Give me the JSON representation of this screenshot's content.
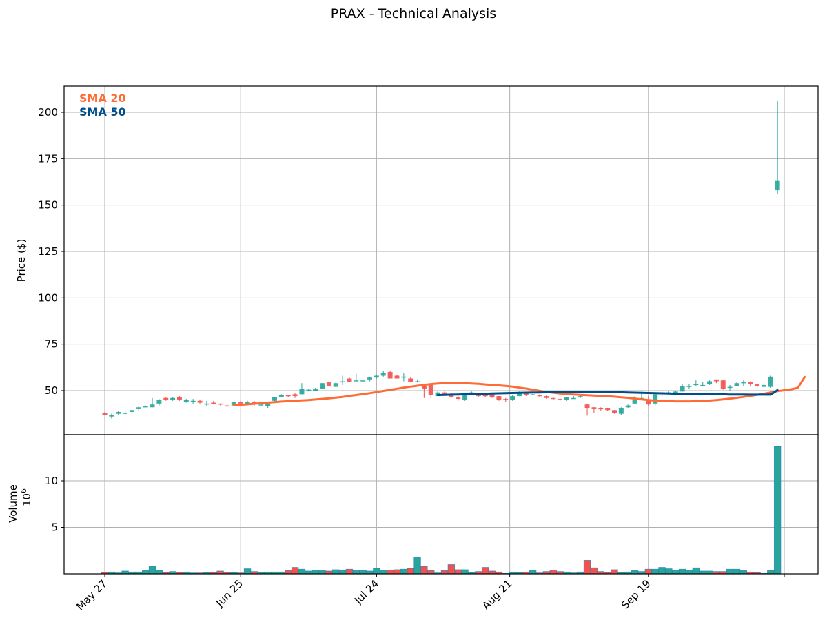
{
  "title": "PRAX - Technical Analysis",
  "colors": {
    "up": "#26a69a",
    "down": "#ef5350",
    "sma20": "#ff6b35",
    "sma50": "#004e89",
    "grid": "#b0b0b0",
    "volume_edge": "#1f77b4"
  },
  "legend": [
    {
      "label": "SMA 20",
      "color": "#ff6b35"
    },
    {
      "label": "SMA 50",
      "color": "#004e89"
    }
  ],
  "axes": {
    "price_ylabel": "Price ($)",
    "volume_ylabel": "Volume",
    "volume_scale_label": "10^6",
    "price_ticks": [
      50,
      75,
      100,
      125,
      150,
      175,
      200
    ],
    "volume_ticks": [
      5,
      10
    ],
    "x_ticks": [
      "May 27",
      "Jun 25",
      "Jul 24",
      "Aug 21",
      "Sep 19",
      ""
    ]
  },
  "chart_data": [
    {
      "type": "candlestick",
      "title": "PRAX - Technical Analysis",
      "xlabel": "",
      "ylabel": "Price ($)",
      "ylim": [
        22,
        214
      ],
      "grid": true,
      "legend_position": "upper left",
      "x_tick_labels": [
        "May 27",
        "Jun 25",
        "Jul 24",
        "Aug 21",
        "Sep 19"
      ],
      "candles": [
        [
          38,
          37,
          38.5,
          36.5
        ],
        [
          36,
          37,
          37.5,
          35
        ],
        [
          37.5,
          38.5,
          39,
          37
        ],
        [
          38,
          38,
          39,
          36.5
        ],
        [
          38.5,
          39.5,
          40,
          37.5
        ],
        [
          40,
          41,
          41.5,
          39
        ],
        [
          41,
          41.5,
          42,
          41
        ],
        [
          41,
          42.5,
          46,
          41
        ],
        [
          43,
          45,
          45.5,
          42
        ],
        [
          46,
          45,
          46.5,
          44.5
        ],
        [
          45,
          46,
          46.5,
          44.5
        ],
        [
          46.5,
          45,
          47,
          44.5
        ],
        [
          44,
          45,
          45.5,
          43.5
        ],
        [
          44.5,
          44.5,
          45.5,
          43
        ],
        [
          44.5,
          43.5,
          45,
          43
        ],
        [
          43,
          43,
          44.5,
          41.5
        ],
        [
          43.5,
          43,
          44.5,
          42.5
        ],
        [
          43,
          42.5,
          43,
          42
        ],
        [
          42,
          41.5,
          42.5,
          41
        ],
        [
          42,
          44,
          44,
          41.5
        ],
        [
          44,
          43,
          44.5,
          42
        ],
        [
          43,
          44,
          44.5,
          42
        ],
        [
          44,
          43,
          44.5,
          42
        ],
        [
          42,
          42.5,
          43,
          41.5
        ],
        [
          41.5,
          43.5,
          44,
          40.5
        ],
        [
          44.5,
          46.5,
          46.5,
          44
        ],
        [
          46.5,
          47.5,
          48,
          47
        ],
        [
          47.5,
          47,
          47.5,
          46.5
        ],
        [
          48,
          47,
          48.5,
          46
        ],
        [
          48,
          51,
          54,
          48
        ],
        [
          50,
          50.5,
          51,
          49.5
        ],
        [
          50,
          51,
          51.5,
          50
        ],
        [
          51,
          54,
          54,
          51
        ],
        [
          54.5,
          52.5,
          54.5,
          52.5
        ],
        [
          52,
          54,
          54.5,
          52
        ],
        [
          55,
          55,
          58,
          53
        ],
        [
          56.5,
          54.5,
          57,
          54.5
        ],
        [
          55,
          55.5,
          59,
          55
        ],
        [
          55,
          55.5,
          56,
          54.5
        ],
        [
          56,
          57,
          57.5,
          55
        ],
        [
          57,
          58,
          58.5,
          56.5
        ],
        [
          58,
          59.5,
          60.5,
          57.5
        ],
        [
          60,
          56.5,
          60.5,
          56.5
        ],
        [
          58,
          56.5,
          58.5,
          56.5
        ],
        [
          57.5,
          57.5,
          59.5,
          55
        ],
        [
          56.5,
          54.5,
          57,
          54.5
        ],
        [
          55,
          55,
          56,
          54.5
        ],
        [
          52.5,
          51,
          53,
          46
        ],
        [
          53,
          47.5,
          53,
          46
        ],
        [
          47,
          49,
          49.5,
          47
        ],
        [
          49,
          48,
          49.5,
          47.5
        ],
        [
          48,
          46.5,
          48.5,
          46
        ],
        [
          46.5,
          45.5,
          47,
          44.5
        ],
        [
          45,
          48,
          48,
          44.5
        ],
        [
          48.5,
          49,
          49.5,
          48
        ],
        [
          48,
          47,
          48.5,
          46.5
        ],
        [
          47.5,
          47,
          48,
          46.5
        ],
        [
          48,
          46.5,
          48,
          46
        ],
        [
          47,
          45,
          47,
          44.5
        ],
        [
          45.5,
          45,
          46,
          44
        ],
        [
          45,
          47,
          47.5,
          44.5
        ],
        [
          47,
          49,
          49.5,
          47
        ],
        [
          48.5,
          47.5,
          49,
          47
        ],
        [
          48,
          48,
          49,
          47.5
        ],
        [
          47.5,
          47,
          48,
          46.5
        ],
        [
          47,
          46,
          47.5,
          45.5
        ],
        [
          46,
          45.5,
          46.5,
          45
        ],
        [
          45.5,
          45,
          46,
          44.5
        ],
        [
          45,
          46.5,
          46.5,
          44.5
        ],
        [
          46,
          46,
          47,
          45.5
        ],
        [
          47,
          47,
          47.5,
          46
        ],
        [
          42.5,
          40.5,
          43,
          36.5
        ],
        [
          41,
          40,
          41,
          38
        ],
        [
          40.5,
          40,
          41,
          39
        ],
        [
          40.5,
          39.5,
          40.5,
          39
        ],
        [
          39.5,
          38,
          39.5,
          37.5
        ],
        [
          37.5,
          40.5,
          41,
          37
        ],
        [
          41,
          42,
          42.5,
          40.5
        ],
        [
          43,
          45,
          47,
          43
        ],
        [
          45,
          46,
          49.5,
          45
        ],
        [
          45,
          42.5,
          47,
          41.5
        ],
        [
          43,
          48,
          48.5,
          42
        ],
        [
          48,
          49,
          49.5,
          47
        ],
        [
          48.5,
          49,
          49.5,
          48
        ],
        [
          48.5,
          49.5,
          50,
          48
        ],
        [
          49.5,
          52.5,
          53.5,
          49.5
        ],
        [
          52,
          52.5,
          53.5,
          51
        ],
        [
          53,
          53.5,
          55.5,
          52.5
        ],
        [
          52.5,
          53,
          54.5,
          52.5
        ],
        [
          53.5,
          55,
          55.5,
          53
        ],
        [
          56,
          55,
          56,
          54
        ],
        [
          55.5,
          51,
          55.5,
          50.5
        ],
        [
          51.5,
          52,
          53,
          50
        ],
        [
          52.5,
          54,
          54.5,
          52.5
        ],
        [
          54,
          54.5,
          55.5,
          52.5
        ],
        [
          54.5,
          53.5,
          55,
          52.5
        ],
        [
          53.5,
          52.5,
          53.5,
          51.5
        ],
        [
          52,
          53,
          54,
          51.5
        ],
        [
          52,
          57.5,
          58,
          51.5
        ],
        [
          158,
          163,
          206,
          156
        ]
      ],
      "candles_format": [
        "open",
        "close",
        "high",
        "low"
      ],
      "series": [
        {
          "name": "SMA 20",
          "start_index": 19,
          "values": [
            42,
            42.3,
            42.6,
            42.9,
            43.2,
            43.5,
            43.8,
            44.1,
            44.3,
            44.5,
            44.7,
            44.9,
            45.2,
            45.5,
            45.8,
            46.2,
            46.6,
            47.1,
            47.6,
            48.1,
            48.6,
            49.2,
            49.8,
            50.4,
            51,
            51.6,
            52.1,
            52.6,
            53.1,
            53.5,
            53.8,
            54,
            54.1,
            54.1,
            54,
            53.8,
            53.6,
            53.3,
            53,
            52.8,
            52.5,
            52.1,
            51.6,
            51.1,
            50.5,
            49.9,
            49.3,
            48.8,
            48.4,
            48.1,
            47.9,
            47.7,
            47.5,
            47.3,
            47.1,
            46.9,
            46.7,
            46.4,
            46.1,
            45.7,
            45.3,
            44.9,
            44.6,
            44.4,
            44.3,
            44.2,
            44.2,
            44.2,
            44.3,
            44.4,
            44.6,
            44.9,
            45.3,
            45.7,
            46.1,
            46.6,
            47.1,
            47.7,
            48.3,
            49,
            49.7,
            50.2,
            50.7,
            51.5,
            57.3
          ]
        },
        {
          "name": "SMA 50",
          "start_index": 49,
          "values": [
            47.6,
            47.7,
            47.8,
            47.9,
            48,
            48.1,
            48.2,
            48.3,
            48.4,
            48.5,
            48.6,
            48.7,
            48.8,
            48.9,
            49,
            49,
            49.1,
            49.1,
            49.2,
            49.2,
            49.3,
            49.3,
            49.3,
            49.3,
            49.2,
            49.2,
            49.1,
            49.1,
            49,
            48.9,
            48.8,
            48.7,
            48.6,
            48.5,
            48.4,
            48.3,
            48.2,
            48.2,
            48.1,
            48.1,
            48,
            48,
            48,
            47.9,
            47.9,
            47.9,
            47.8,
            47.8,
            47.8,
            47.8,
            50.3
          ]
        }
      ],
      "volume": {
        "unit": "1e6",
        "ylim": [
          0,
          14.9
        ],
        "values": [
          0.15,
          0.2,
          0.1,
          0.3,
          0.2,
          0.2,
          0.4,
          0.8,
          0.35,
          0.15,
          0.25,
          0.15,
          0.2,
          0.1,
          0.1,
          0.15,
          0.15,
          0.3,
          0.15,
          0.15,
          0.1,
          0.55,
          0.25,
          0.15,
          0.2,
          0.2,
          0.2,
          0.35,
          0.7,
          0.5,
          0.3,
          0.4,
          0.35,
          0.3,
          0.45,
          0.35,
          0.5,
          0.4,
          0.35,
          0.3,
          0.6,
          0.35,
          0.4,
          0.45,
          0.5,
          0.6,
          1.75,
          0.8,
          0.35,
          0.1,
          0.35,
          1.0,
          0.45,
          0.45,
          0.15,
          0.25,
          0.7,
          0.3,
          0.2,
          0.05,
          0.2,
          0.15,
          0.2,
          0.35,
          0.1,
          0.25,
          0.4,
          0.25,
          0.2,
          0.1,
          0.2,
          1.45,
          0.65,
          0.25,
          0.15,
          0.45,
          0.15,
          0.2,
          0.35,
          0.25,
          0.5,
          0.5,
          0.7,
          0.55,
          0.4,
          0.5,
          0.4,
          0.65,
          0.3,
          0.3,
          0.25,
          0.25,
          0.5,
          0.5,
          0.35,
          0.2,
          0.15,
          0.05,
          0.35,
          13.7
        ]
      }
    }
  ]
}
